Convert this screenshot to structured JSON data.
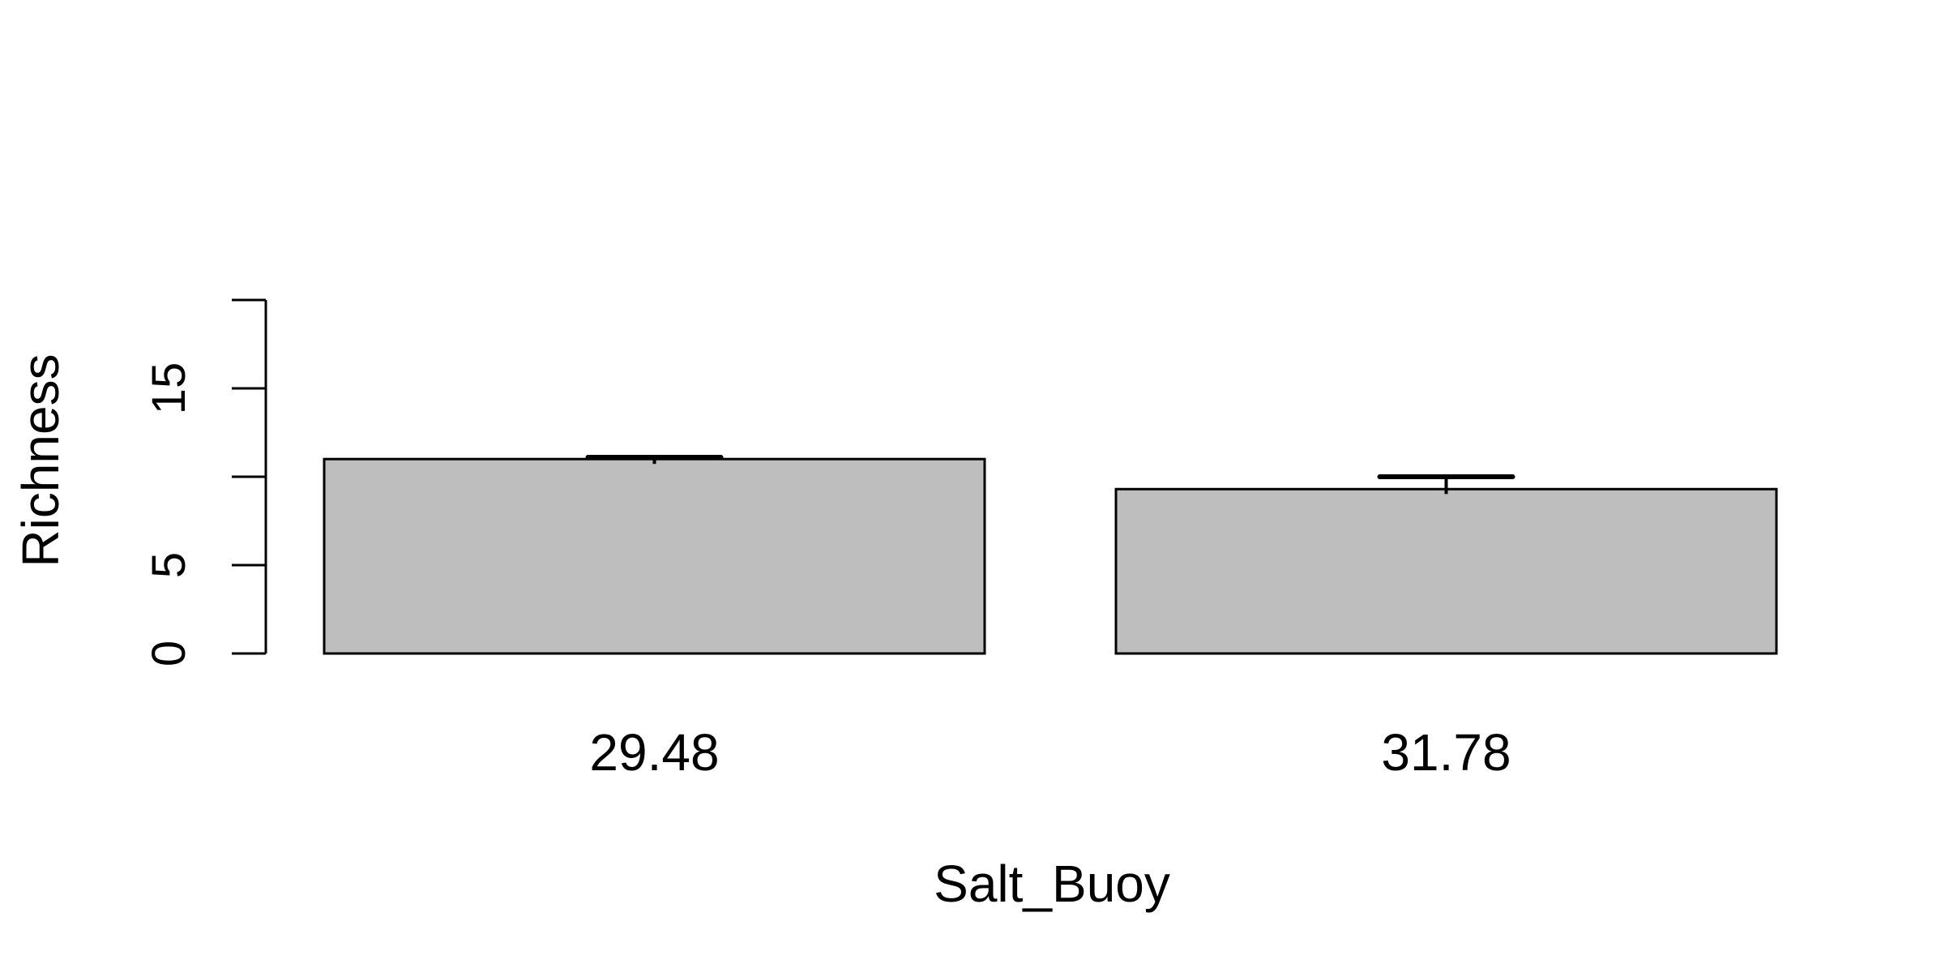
{
  "chart_data": {
    "type": "bar",
    "categories": [
      "29.48",
      "31.78"
    ],
    "values": [
      11.0,
      9.3
    ],
    "error_bars": [
      {
        "lower": 11.0,
        "upper": 11.1
      },
      {
        "lower": 9.3,
        "upper": 10.0
      }
    ],
    "title": "",
    "xlabel": "Salt_Buoy",
    "ylabel": "Richness",
    "ylim": [
      0,
      20
    ],
    "yticks": [
      0,
      5,
      10,
      15,
      20
    ],
    "ytick_labels": [
      "0",
      "5",
      "",
      "15",
      ""
    ],
    "grid": false,
    "legend": "none",
    "colors": {
      "bar_fill": "#bebebe",
      "bar_stroke": "#000000",
      "axis": "#000000",
      "background": "#ffffff"
    }
  }
}
